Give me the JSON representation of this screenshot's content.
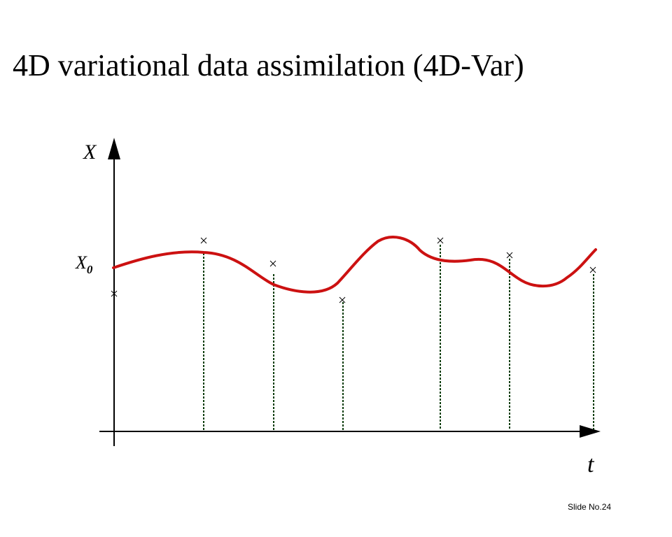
{
  "slide": {
    "title": "4D variational data assimilation (4D-Var)",
    "slide_number": "Slide No.24"
  },
  "diagram": {
    "y_axis_label": "X",
    "x0_label_main": "X",
    "x0_label_sub": "0",
    "x_axis_label": "t",
    "trajectory_color": "#cc1111",
    "observation_line_color": "#0b3d0b",
    "observation_marker": "×"
  }
}
